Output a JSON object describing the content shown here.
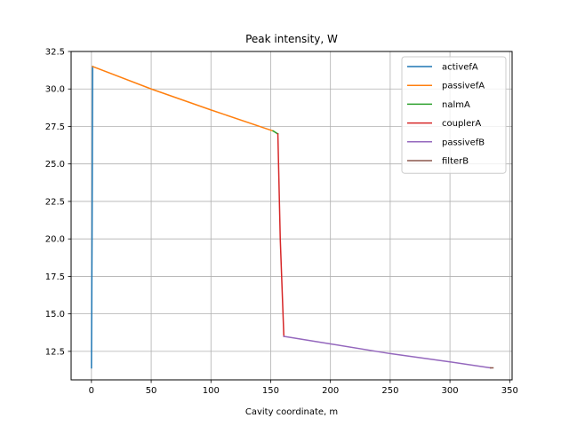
{
  "chart_data": {
    "type": "line",
    "title": "Peak intensity, W",
    "xlabel": "Cavity coordinate, m",
    "ylabel": "",
    "xlim": [
      -17,
      352
    ],
    "ylim": [
      10.6,
      32.5
    ],
    "xticks": [
      0,
      50,
      100,
      150,
      200,
      250,
      300,
      350
    ],
    "yticks": [
      12.5,
      15.0,
      17.5,
      20.0,
      22.5,
      25.0,
      27.5,
      30.0,
      32.5
    ],
    "xtick_labels": [
      "0",
      "50",
      "100",
      "150",
      "200",
      "250",
      "300",
      "350"
    ],
    "ytick_labels": [
      "12.5",
      "15.0",
      "17.5",
      "20.0",
      "22.5",
      "25.0",
      "27.5",
      "30.0",
      "32.5"
    ],
    "grid": true,
    "legend_position": "top-right",
    "series": [
      {
        "name": "activefA",
        "color": "#1f77b4",
        "x": [
          0,
          0.5,
          1
        ],
        "y": [
          11.4,
          20.0,
          31.5
        ]
      },
      {
        "name": "passivefA",
        "color": "#ff7f0e",
        "x": [
          1,
          50,
          100,
          152
        ],
        "y": [
          31.5,
          30.0,
          28.6,
          27.2
        ]
      },
      {
        "name": "nalmA",
        "color": "#2ca02c",
        "x": [
          152,
          156
        ],
        "y": [
          27.2,
          27.0
        ]
      },
      {
        "name": "couplerA",
        "color": "#d62728",
        "x": [
          156,
          158,
          161
        ],
        "y": [
          27.0,
          20.0,
          13.5
        ]
      },
      {
        "name": "passivefB",
        "color": "#9467bd",
        "x": [
          161,
          200,
          250,
          300,
          334
        ],
        "y": [
          13.5,
          13.0,
          12.35,
          11.8,
          11.4
        ]
      },
      {
        "name": "filterB",
        "color": "#8c564b",
        "x": [
          334,
          336
        ],
        "y": [
          11.4,
          11.4
        ]
      }
    ]
  }
}
